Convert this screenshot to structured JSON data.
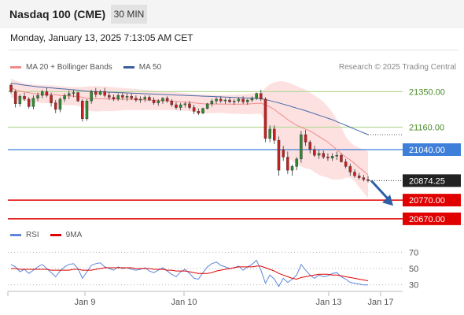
{
  "header": {
    "title": "Nasdaq 100 (CME)",
    "timeframe": "30 MIN"
  },
  "datetime": "Monday, January 13, 2025 7:13:05 AM CET",
  "legend": {
    "items": [
      {
        "label": "MA 20 + Bollinger Bands",
        "color": "#f08a8a"
      },
      {
        "label": "MA 50",
        "color": "#3b5f9e"
      }
    ],
    "copyright": "Research © 2025 Trading Central"
  },
  "rsi_legend": {
    "items": [
      {
        "label": "RSI",
        "color": "#5b86d9"
      },
      {
        "label": "9MA",
        "color": "#e00000"
      }
    ]
  },
  "chart_data": [
    {
      "type": "candlestick",
      "title": "",
      "ylim": [
        20640,
        21440
      ],
      "x_ticks": [
        "Jan 9",
        "Jan 10",
        "Jan 13",
        "Jan 17"
      ],
      "levels": [
        {
          "value": 21350.0,
          "label": "21350.00",
          "style": "green",
          "color": "#b8d99b"
        },
        {
          "value": 21160.0,
          "label": "21160.00",
          "style": "green",
          "color": "#b8d99b"
        },
        {
          "value": 21040.0,
          "label": "21040.00",
          "style": "blue",
          "color": "#3d7fd9"
        },
        {
          "value": 20874.25,
          "label": "20874.25",
          "style": "current",
          "color": "#222222"
        },
        {
          "value": 20770.0,
          "label": "20770.00",
          "style": "red",
          "color": "#e00000"
        },
        {
          "value": 20670.0,
          "label": "20670.00",
          "style": "red",
          "color": "#e00000"
        }
      ],
      "ohlc": [
        [
          21385,
          21395,
          21340,
          21350
        ],
        [
          21350,
          21360,
          21265,
          21285
        ],
        [
          21285,
          21335,
          21270,
          21325
        ],
        [
          21325,
          21345,
          21300,
          21310
        ],
        [
          21310,
          21320,
          21260,
          21270
        ],
        [
          21270,
          21330,
          21255,
          21315
        ],
        [
          21315,
          21345,
          21300,
          21330
        ],
        [
          21330,
          21360,
          21315,
          21350
        ],
        [
          21350,
          21370,
          21320,
          21330
        ],
        [
          21330,
          21345,
          21270,
          21290
        ],
        [
          21290,
          21305,
          21235,
          21255
        ],
        [
          21255,
          21320,
          21240,
          21310
        ],
        [
          21310,
          21340,
          21295,
          21330
        ],
        [
          21330,
          21355,
          21310,
          21340
        ],
        [
          21340,
          21360,
          21320,
          21345
        ],
        [
          21345,
          21350,
          21295,
          21300
        ],
        [
          21300,
          21310,
          21190,
          21205
        ],
        [
          21205,
          21310,
          21195,
          21300
        ],
        [
          21300,
          21360,
          21285,
          21350
        ],
        [
          21350,
          21370,
          21320,
          21335
        ],
        [
          21335,
          21360,
          21330,
          21350
        ],
        [
          21350,
          21370,
          21320,
          21330
        ],
        [
          21330,
          21345,
          21305,
          21320
        ],
        [
          21320,
          21335,
          21300,
          21310
        ],
        [
          21310,
          21340,
          21300,
          21330
        ],
        [
          21330,
          21345,
          21305,
          21320
        ],
        [
          21320,
          21340,
          21300,
          21325
        ],
        [
          21325,
          21340,
          21305,
          21315
        ],
        [
          21315,
          21330,
          21295,
          21305
        ],
        [
          21305,
          21325,
          21290,
          21310
        ],
        [
          21310,
          21330,
          21295,
          21320
        ],
        [
          21320,
          21330,
          21300,
          21305
        ],
        [
          21305,
          21320,
          21280,
          21290
        ],
        [
          21290,
          21310,
          21275,
          21300
        ],
        [
          21300,
          21320,
          21285,
          21315
        ],
        [
          21315,
          21325,
          21290,
          21300
        ],
        [
          21300,
          21310,
          21270,
          21280
        ],
        [
          21280,
          21295,
          21255,
          21265
        ],
        [
          21265,
          21290,
          21250,
          21280
        ],
        [
          21280,
          21295,
          21265,
          21285
        ],
        [
          21285,
          21300,
          21255,
          21265
        ],
        [
          21265,
          21280,
          21230,
          21245
        ],
        [
          21245,
          21260,
          21225,
          21235
        ],
        [
          21235,
          21265,
          21230,
          21260
        ],
        [
          21260,
          21290,
          21255,
          21285
        ],
        [
          21285,
          21310,
          21270,
          21300
        ],
        [
          21300,
          21320,
          21285,
          21310
        ],
        [
          21310,
          21325,
          21290,
          21300
        ],
        [
          21300,
          21315,
          21285,
          21305
        ],
        [
          21305,
          21320,
          21290,
          21295
        ],
        [
          21295,
          21310,
          21280,
          21300
        ],
        [
          21300,
          21320,
          21290,
          21310
        ],
        [
          21310,
          21325,
          21285,
          21295
        ],
        [
          21295,
          21310,
          21280,
          21305
        ],
        [
          21305,
          21325,
          21295,
          21315
        ],
        [
          21315,
          21345,
          21305,
          21340
        ],
        [
          21340,
          21360,
          21300,
          21310
        ],
        [
          21310,
          21320,
          21080,
          21100
        ],
        [
          21100,
          21170,
          21080,
          21150
        ],
        [
          21150,
          21170,
          21070,
          21090
        ],
        [
          21090,
          21110,
          20900,
          20930
        ],
        [
          21040,
          21060,
          20980,
          21000
        ],
        [
          21000,
          21030,
          20910,
          20930
        ],
        [
          20930,
          20960,
          20900,
          20950
        ],
        [
          20950,
          21000,
          20930,
          20990
        ],
        [
          20990,
          21140,
          20970,
          21120
        ],
        [
          21120,
          21145,
          21060,
          21080
        ],
        [
          21080,
          21090,
          21020,
          21040
        ],
        [
          21040,
          21060,
          21000,
          21010
        ],
        [
          21010,
          21040,
          20990,
          21020
        ],
        [
          21020,
          21035,
          20990,
          21000
        ],
        [
          21000,
          21020,
          20980,
          20995
        ],
        [
          20995,
          21020,
          20980,
          21005
        ],
        [
          21005,
          21030,
          20985,
          21010
        ],
        [
          21010,
          21020,
          20970,
          20975
        ],
        [
          20975,
          20990,
          20940,
          20950
        ],
        [
          20950,
          20965,
          20900,
          20920
        ],
        [
          20920,
          20935,
          20890,
          20900
        ],
        [
          20900,
          20915,
          20880,
          20890
        ],
        [
          20890,
          20905,
          20870,
          20880
        ],
        [
          20880,
          20900,
          20865,
          20874
        ]
      ],
      "ma20": [
        21370,
        21360,
        21352,
        21348,
        21344,
        21340,
        21338,
        21337,
        21336,
        21335,
        21333,
        21330,
        21328,
        21327,
        21326,
        21324,
        21320,
        21315,
        21313,
        21312,
        21312,
        21312,
        21311,
        21310,
        21310,
        21310,
        21310,
        21309,
        21308,
        21307,
        21306,
        21305,
        21304,
        21303,
        21302,
        21301,
        21300,
        21298,
        21296,
        21295,
        21293,
        21290,
        21287,
        21285,
        21284,
        21284,
        21284,
        21284,
        21283,
        21283,
        21283,
        21283,
        21283,
        21284,
        21285,
        21287,
        21288,
        21280,
        21268,
        21255,
        21235,
        21220,
        21200,
        21185,
        21170,
        21160,
        21150,
        21140,
        21125,
        21110,
        21095,
        21080,
        21060,
        21040,
        21020,
        21000,
        20985,
        20965,
        20945,
        20925,
        20905
      ],
      "ma50": [
        21395,
        21392,
        21388,
        21385,
        21382,
        21379,
        21376,
        21374,
        21372,
        21370,
        21368,
        21366,
        21364,
        21362,
        21360,
        21358,
        21355,
        21353,
        21351,
        21350,
        21349,
        21348,
        21347,
        21346,
        21345,
        21344,
        21343,
        21342,
        21341,
        21340,
        21339,
        21338,
        21337,
        21336,
        21335,
        21334,
        21333,
        21332,
        21331,
        21330,
        21329,
        21328,
        21327,
        21326,
        21325,
        21324,
        21323,
        21322,
        21321,
        21320,
        21319,
        21318,
        21317,
        21316,
        21315,
        21314,
        21312,
        21308,
        21302,
        21296,
        21290,
        21283,
        21276,
        21269,
        21262,
        21255,
        21248,
        21240,
        21232,
        21224,
        21216,
        21208,
        21200,
        21190,
        21180,
        21170,
        21160,
        21150,
        21140,
        21130,
        21120
      ],
      "bb_upper": [
        21420,
        21410,
        21400,
        21395,
        21390,
        21388,
        21386,
        21385,
        21384,
        21383,
        21382,
        21380,
        21378,
        21376,
        21375,
        21374,
        21375,
        21378,
        21380,
        21380,
        21379,
        21378,
        21376,
        21374,
        21372,
        21370,
        21368,
        21366,
        21364,
        21362,
        21360,
        21358,
        21356,
        21354,
        21352,
        21350,
        21348,
        21346,
        21344,
        21342,
        21340,
        21338,
        21336,
        21335,
        21334,
        21333,
        21332,
        21332,
        21332,
        21333,
        21334,
        21335,
        21336,
        21338,
        21340,
        21342,
        21345,
        21370,
        21390,
        21400,
        21405,
        21405,
        21400,
        21390,
        21380,
        21370,
        21360,
        21345,
        21330,
        21315,
        21295,
        21270,
        21240,
        21200,
        21160,
        21110,
        21080,
        21060,
        21050,
        21040,
        21030
      ],
      "bb_lower": [
        21320,
        21310,
        21304,
        21300,
        21298,
        21292,
        21290,
        21289,
        21288,
        21287,
        21284,
        21280,
        21278,
        21278,
        21277,
        21274,
        21265,
        21252,
        21246,
        21244,
        21245,
        21246,
        21246,
        21246,
        21248,
        21250,
        21252,
        21252,
        21252,
        21252,
        21252,
        21252,
        21252,
        21252,
        21252,
        21252,
        21252,
        21250,
        21248,
        21248,
        21246,
        21242,
        21238,
        21235,
        21234,
        21235,
        21236,
        21236,
        21234,
        21233,
        21232,
        21231,
        21230,
        21230,
        21230,
        21232,
        21231,
        21190,
        21146,
        21110,
        21065,
        21035,
        21000,
        20980,
        20960,
        20950,
        20940,
        20935,
        20920,
        20905,
        20895,
        20890,
        20880,
        20880,
        20880,
        20890,
        20890,
        20870,
        20840,
        20810,
        20780
      ],
      "forecast": {
        "from": 20874.25,
        "to": 20740
      }
    },
    {
      "type": "line",
      "title": "",
      "ylim": [
        22,
        78
      ],
      "y_ticks": [
        70,
        50,
        30
      ],
      "series": [
        {
          "name": "RSI",
          "color": "#5b86d9",
          "values": [
            55,
            52,
            46,
            49,
            44,
            48,
            52,
            55,
            50,
            45,
            40,
            47,
            52,
            55,
            56,
            50,
            38,
            46,
            54,
            56,
            57,
            52,
            50,
            48,
            52,
            50,
            51,
            49,
            48,
            49,
            51,
            47,
            45,
            48,
            51,
            47,
            43,
            40,
            46,
            49,
            44,
            38,
            37,
            45,
            52,
            56,
            58,
            54,
            52,
            50,
            51,
            53,
            48,
            52,
            55,
            60,
            48,
            32,
            42,
            37,
            28,
            38,
            33,
            37,
            42,
            55,
            48,
            42,
            38,
            42,
            40,
            41,
            44,
            45,
            40,
            37,
            33,
            32,
            31,
            30,
            30
          ]
        },
        {
          "name": "9MA",
          "color": "#e00000",
          "values": [
            50,
            50,
            49,
            49,
            49,
            49,
            49,
            49,
            49,
            48,
            48,
            48,
            48,
            48,
            49,
            49,
            48,
            48,
            48,
            49,
            50,
            51,
            51,
            51,
            51,
            51,
            51,
            51,
            50,
            50,
            50,
            50,
            49,
            49,
            49,
            48,
            48,
            47,
            47,
            47,
            46,
            45,
            44,
            44,
            44,
            45,
            47,
            48,
            49,
            50,
            51,
            52,
            52,
            52,
            52,
            53,
            53,
            51,
            49,
            47,
            44,
            42,
            40,
            38,
            37,
            39,
            40,
            41,
            42,
            43,
            43,
            43,
            42,
            42,
            41,
            40,
            39,
            38,
            37,
            36,
            35
          ]
        }
      ]
    }
  ]
}
